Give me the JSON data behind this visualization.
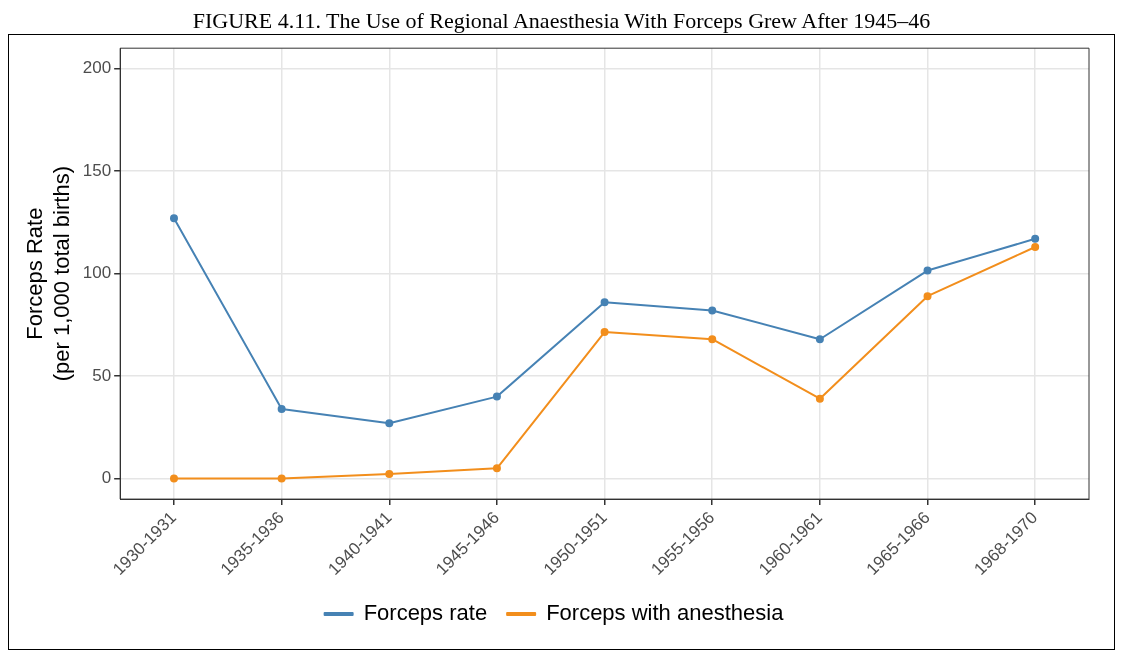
{
  "chart_data": {
    "type": "line",
    "title": "FIGURE 4.11. The Use of Regional Anaesthesia With Forceps Grew After 1945–46",
    "ylabel": "Forceps Rate\n(per 1,000 total births)",
    "categories": [
      "1930-1931",
      "1935-1936",
      "1940-1941",
      "1945-1946",
      "1950-1951",
      "1955-1956",
      "1960-1961",
      "1965-1966",
      "1968-1970"
    ],
    "series": [
      {
        "name": "Forceps rate",
        "color": "#4682b4",
        "values": [
          127,
          34,
          27,
          40,
          86,
          82,
          68,
          101.5,
          117
        ]
      },
      {
        "name": "Forceps with anesthesia",
        "color": "#f28e1c",
        "values": [
          0,
          0,
          2.3,
          5,
          71.5,
          68,
          39,
          89,
          113
        ]
      }
    ],
    "ylim": [
      -10,
      210
    ],
    "yticks": [
      0,
      50,
      100,
      150,
      200
    ],
    "grid": true,
    "legend": "bottom",
    "marker": "circle",
    "line_style": "solid"
  }
}
